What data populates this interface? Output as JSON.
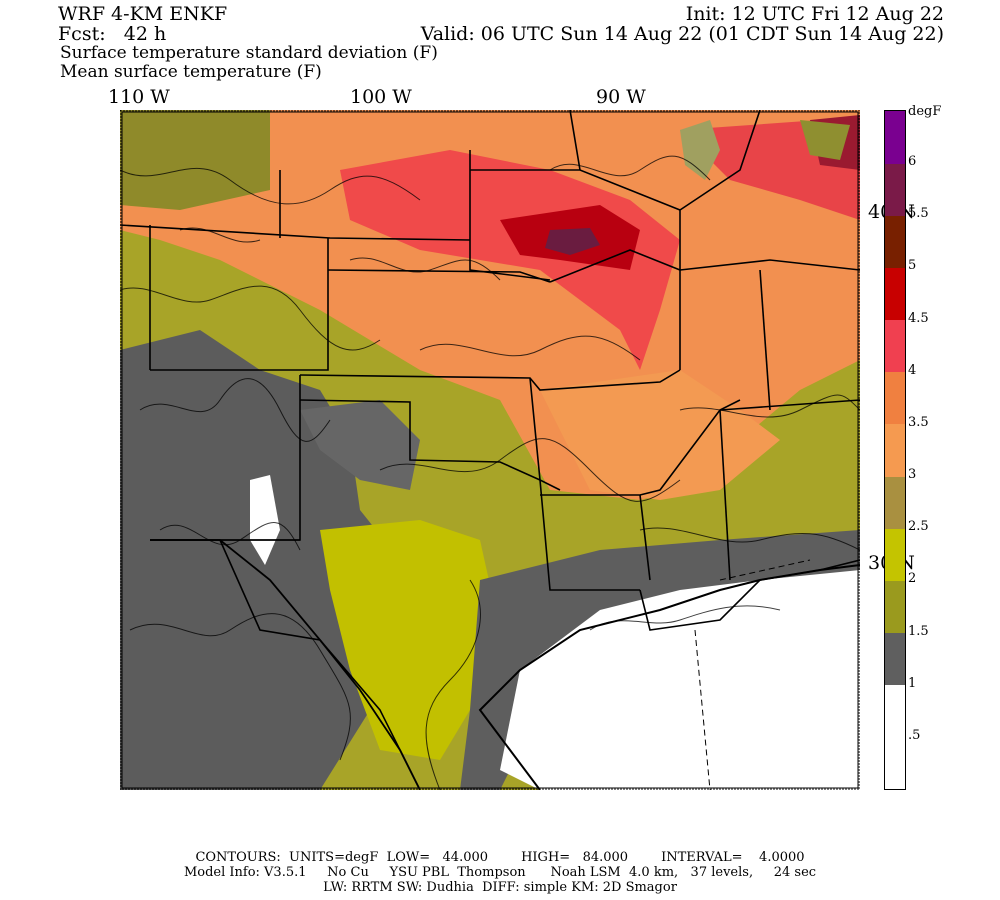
{
  "header": {
    "model": "WRF 4-KM ENKF",
    "init": "Init: 12 UTC Fri 12 Aug 22",
    "fcst": "Fcst:   42 h",
    "valid": "Valid: 06 UTC Sun 14 Aug 22 (01 CDT Sun 14 Aug 22)",
    "field1": "Surface temperature standard deviation (F)",
    "field2": "Mean surface temperature (F)"
  },
  "longitude_labels": [
    "110 W",
    "100 W",
    "90 W"
  ],
  "latitude_labels": [
    "40 N",
    "30 N"
  ],
  "colorbar": {
    "unit": "degF",
    "labels": [
      ".5",
      "1",
      "1.5",
      "2",
      "2.5",
      "3",
      "3.5",
      "4",
      "4.5",
      "5",
      "5.5",
      "6"
    ],
    "colors": [
      "#ffffff",
      "#ffffff",
      "#5f5f5f",
      "#9a9a1e",
      "#c4c400",
      "#a99040",
      "#f59a50",
      "#f08040",
      "#f04050",
      "#c80000",
      "#782000",
      "#7a1a48",
      "#7a0090"
    ]
  },
  "footer": {
    "contours": "CONTOURS:  UNITS=degF  LOW=   44.000        HIGH=   84.000        INTERVAL=    4.0000",
    "model_info": "Model Info: V3.5.1     No Cu     YSU PBL  Thompson      Noah LSM  4.0 km,   37 levels,     24 sec",
    "physics": "LW: RRTM SW: Dudhia  DIFF: simple KM: 2D Smagor"
  }
}
